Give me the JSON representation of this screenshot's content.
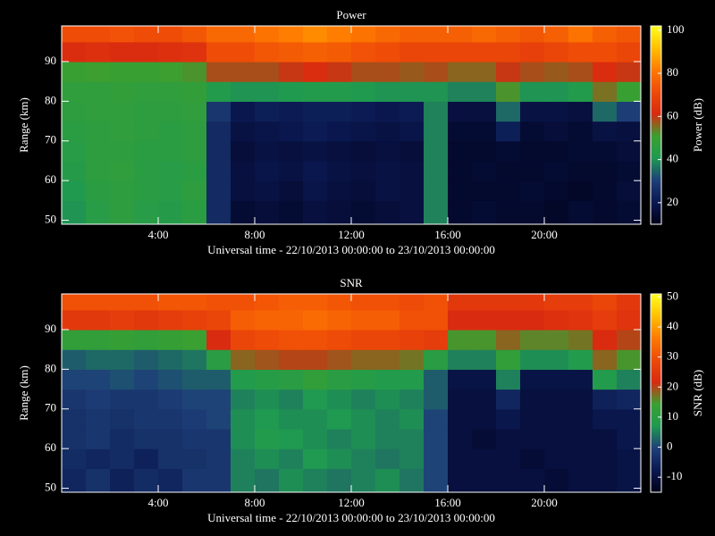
{
  "chart_data": [
    {
      "type": "heatmap",
      "title": "Power",
      "xlabel": "Universal time - 22/10/2013 00:00:00 to 23/10/2013 00:00:00",
      "ylabel": "Range (km)",
      "colorbar_label": "Power (dB)",
      "x": [
        0.5,
        1.5,
        2.5,
        3.5,
        4.5,
        5.5,
        6.5,
        7.5,
        8.5,
        9.5,
        10.5,
        11.5,
        12.5,
        13.5,
        14.5,
        15.5,
        16.5,
        17.5,
        18.5,
        19.5,
        20.5,
        21.5,
        22.5,
        23.5
      ],
      "y": [
        52.5,
        57.5,
        62.5,
        67.5,
        72.5,
        77.5,
        82.5,
        87.5,
        92.5,
        97.5
      ],
      "values": [
        [
          40,
          44,
          46,
          44,
          43,
          45,
          25,
          15,
          16,
          15,
          17,
          16,
          15,
          16,
          17,
          38,
          14,
          15,
          14,
          14,
          13,
          15,
          14,
          15
        ],
        [
          41,
          45,
          46,
          45,
          44,
          46,
          25,
          17,
          18,
          16,
          19,
          17,
          16,
          18,
          17,
          38,
          14,
          14,
          14,
          15,
          14,
          13,
          14,
          16
        ],
        [
          43,
          46,
          47,
          45,
          44,
          45,
          25,
          17,
          19,
          18,
          20,
          18,
          17,
          18,
          17,
          38,
          14,
          15,
          14,
          14,
          15,
          14,
          14,
          15
        ],
        [
          44,
          46,
          46,
          45,
          45,
          46,
          25,
          16,
          18,
          17,
          18,
          17,
          16,
          17,
          16,
          38,
          14,
          14,
          15,
          14,
          14,
          15,
          15,
          16
        ],
        [
          45,
          46,
          47,
          46,
          45,
          46,
          25,
          18,
          19,
          20,
          21,
          20,
          19,
          18,
          19,
          38,
          15,
          15,
          22,
          15,
          16,
          15,
          18,
          17
        ],
        [
          46,
          47,
          47,
          46,
          46,
          47,
          28,
          20,
          22,
          21,
          22,
          22,
          21,
          20,
          21,
          38,
          17,
          17,
          35,
          18,
          18,
          17,
          35,
          30
        ],
        [
          47,
          47,
          48,
          47,
          47,
          48,
          42,
          40,
          40,
          41,
          42,
          42,
          41,
          40,
          40,
          40,
          38,
          38,
          52,
          40,
          40,
          42,
          55,
          50
        ],
        [
          50,
          51,
          50,
          50,
          51,
          52,
          58,
          58,
          58,
          60,
          62,
          60,
          58,
          58,
          57,
          58,
          56,
          56,
          60,
          58,
          57,
          58,
          62,
          60
        ],
        [
          62,
          63,
          62,
          62,
          63,
          64,
          72,
          72,
          74,
          75,
          76,
          75,
          73,
          72,
          70,
          70,
          70,
          70,
          70,
          68,
          70,
          72,
          72,
          70
        ],
        [
          72,
          72,
          73,
          72,
          72,
          74,
          78,
          78,
          80,
          82,
          84,
          82,
          80,
          78,
          76,
          76,
          76,
          78,
          76,
          74,
          76,
          80,
          76,
          74
        ]
      ],
      "xlim": [
        0,
        24
      ],
      "xticks": [
        {
          "value": 4,
          "label": "4:00"
        },
        {
          "value": 8,
          "label": "8:00"
        },
        {
          "value": 12,
          "label": "12:00"
        },
        {
          "value": 16,
          "label": "16:00"
        },
        {
          "value": 20,
          "label": "20:00"
        }
      ],
      "ylim": [
        49,
        99
      ],
      "yticks": [
        50,
        60,
        70,
        80,
        90
      ],
      "clim": [
        10,
        102
      ],
      "cticks": [
        20,
        40,
        60,
        80,
        100
      ],
      "colormap": [
        "#000018",
        "#0a1850",
        "#1e3f78",
        "#1f9a50",
        "#3aa030",
        "#d82a10",
        "#ee4a08",
        "#ff7a00",
        "#ffc000",
        "#ffff20"
      ],
      "grid": false
    },
    {
      "type": "heatmap",
      "title": "SNR",
      "xlabel": "Universal time - 22/10/2013 00:00:00 to 23/10/2013 00:00:00",
      "ylabel": "Range (km)",
      "colorbar_label": "SNR (dB)",
      "x": [
        0.5,
        1.5,
        2.5,
        3.5,
        4.5,
        5.5,
        6.5,
        7.5,
        8.5,
        9.5,
        10.5,
        11.5,
        12.5,
        13.5,
        14.5,
        15.5,
        16.5,
        17.5,
        18.5,
        19.5,
        20.5,
        21.5,
        22.5,
        23.5
      ],
      "y": [
        52.5,
        57.5,
        62.5,
        67.5,
        72.5,
        77.5,
        82.5,
        87.5,
        92.5,
        97.5
      ],
      "values": [
        [
          -5,
          -3,
          -6,
          -4,
          -5,
          -2,
          -2,
          5,
          4,
          6,
          5,
          4,
          5,
          6,
          4,
          0,
          -10,
          -10,
          -10,
          -10,
          -11,
          -10,
          -10,
          -9
        ],
        [
          -4,
          -5,
          -4,
          -6,
          -3,
          -3,
          -2,
          5,
          6,
          5,
          7,
          6,
          5,
          4,
          5,
          0,
          -10,
          -10,
          -10,
          -11,
          -10,
          -10,
          -10,
          -9
        ],
        [
          -3,
          -2,
          -4,
          -3,
          -3,
          -2,
          -2,
          6,
          8,
          7,
          6,
          5,
          6,
          5,
          5,
          0,
          -10,
          -11,
          -10,
          -10,
          -10,
          -10,
          -10,
          -8
        ],
        [
          -3,
          -2,
          -3,
          -2,
          -2,
          -1,
          0,
          6,
          7,
          6,
          6,
          7,
          6,
          5,
          6,
          0,
          -10,
          -10,
          -8,
          -10,
          -10,
          -10,
          -8,
          -8
        ],
        [
          -2,
          -1,
          -2,
          -2,
          -1,
          0,
          0,
          5,
          6,
          5,
          7,
          6,
          5,
          6,
          5,
          2,
          -10,
          -10,
          -5,
          -10,
          -10,
          -10,
          -6,
          -5
        ],
        [
          0,
          0,
          1,
          0,
          1,
          2,
          2,
          8,
          9,
          10,
          12,
          10,
          9,
          8,
          8,
          2,
          -9,
          -9,
          5,
          -9,
          -9,
          -9,
          8,
          5
        ],
        [
          2,
          3,
          3,
          2,
          3,
          4,
          10,
          18,
          19,
          20,
          20,
          19,
          18,
          18,
          17,
          10,
          5,
          5,
          12,
          6,
          6,
          8,
          18,
          15
        ],
        [
          12,
          12,
          13,
          12,
          13,
          14,
          22,
          28,
          29,
          30,
          30,
          29,
          28,
          28,
          27,
          26,
          15,
          15,
          18,
          16,
          16,
          17,
          22,
          20
        ],
        [
          25,
          25,
          26,
          25,
          26,
          27,
          28,
          32,
          33,
          33,
          34,
          33,
          32,
          32,
          30,
          30,
          22,
          22,
          22,
          22,
          23,
          24,
          26,
          24
        ],
        [
          30,
          30,
          30,
          30,
          31,
          31,
          30,
          30,
          31,
          32,
          32,
          31,
          30,
          30,
          29,
          30,
          25,
          25,
          25,
          25,
          26,
          26,
          28,
          25
        ]
      ],
      "xlim": [
        0,
        24
      ],
      "xticks": [
        {
          "value": 4,
          "label": "4:00"
        },
        {
          "value": 8,
          "label": "8:00"
        },
        {
          "value": 12,
          "label": "12:00"
        },
        {
          "value": 16,
          "label": "16:00"
        },
        {
          "value": 20,
          "label": "20:00"
        }
      ],
      "ylim": [
        49,
        99
      ],
      "yticks": [
        50,
        60,
        70,
        80,
        90
      ],
      "clim": [
        -15,
        51
      ],
      "cticks": [
        -10,
        0,
        10,
        20,
        30,
        40,
        50
      ],
      "colormap": [
        "#000018",
        "#0a1850",
        "#1e3f78",
        "#1f9a50",
        "#3aa030",
        "#d82a10",
        "#ee4a08",
        "#ff7a00",
        "#ffc000",
        "#ffff20"
      ],
      "grid": false
    }
  ]
}
